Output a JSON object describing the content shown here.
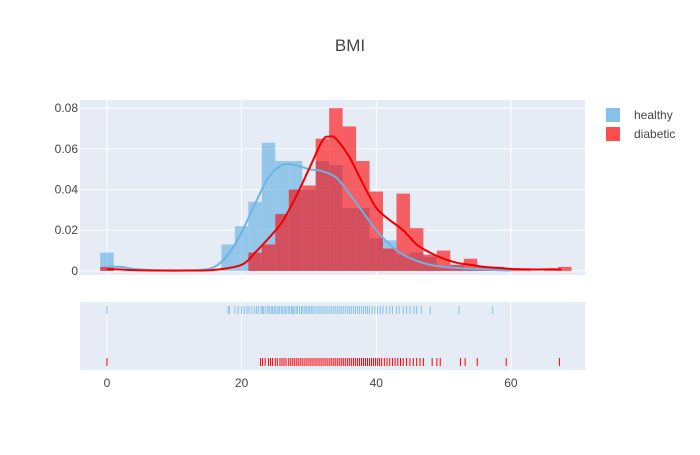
{
  "title": "BMI",
  "colors": {
    "healthy": "#5dade2",
    "diabetic": "#ff0000",
    "plot_bg": "#e5ecf6",
    "grid": "#ffffff",
    "text": "#444444",
    "title": "#444444"
  },
  "legend": {
    "placement": "top-right",
    "items": [
      {
        "name": "healthy",
        "color": "#85c1e9"
      },
      {
        "name": "diabetic",
        "color": "#ff4d4d"
      }
    ]
  },
  "chart_data": {
    "type": "histogram-with-density-and-rug",
    "title": "BMI",
    "bin_width": 2,
    "xlim": [
      -4,
      71
    ],
    "ylim": [
      -0.002,
      0.084
    ],
    "x_ticks": [
      0,
      20,
      40,
      60
    ],
    "x_tick_labels": [
      "0",
      "20",
      "40",
      "60"
    ],
    "y_ticks": [
      0,
      0.02,
      0.04,
      0.06,
      0.08
    ],
    "y_tick_labels": [
      "0",
      "0.02",
      "0.04",
      "0.06",
      "0.08"
    ],
    "grid": true,
    "series": [
      {
        "name": "healthy",
        "bins": [
          [
            -1,
            0.009
          ],
          [
            17,
            0.013
          ],
          [
            19,
            0.022
          ],
          [
            21,
            0.034
          ],
          [
            23,
            0.063
          ],
          [
            25,
            0.054
          ],
          [
            27,
            0.054
          ],
          [
            29,
            0.04
          ],
          [
            31,
            0.054
          ],
          [
            33,
            0.052
          ],
          [
            35,
            0.031
          ],
          [
            37,
            0.031
          ],
          [
            39,
            0.016
          ],
          [
            41,
            0.015
          ],
          [
            43,
            0.008
          ],
          [
            45,
            0.009
          ],
          [
            47,
            0.007
          ],
          [
            49,
            0.002
          ],
          [
            51,
            0.003
          ],
          [
            53,
            0.001
          ],
          [
            55,
            0.001
          ],
          [
            57,
            0.001
          ]
        ],
        "density": [
          [
            0,
            0.002
          ],
          [
            2,
            0.002
          ],
          [
            4,
            0.001
          ],
          [
            6,
            0.0005
          ],
          [
            8,
            0.0003
          ],
          [
            10,
            0.0003
          ],
          [
            12,
            0.0003
          ],
          [
            14,
            0.0005
          ],
          [
            16,
            0.002
          ],
          [
            18,
            0.008
          ],
          [
            20,
            0.019
          ],
          [
            22,
            0.033
          ],
          [
            24,
            0.046
          ],
          [
            26,
            0.052
          ],
          [
            28,
            0.052
          ],
          [
            30,
            0.05
          ],
          [
            32,
            0.049
          ],
          [
            34,
            0.046
          ],
          [
            36,
            0.038
          ],
          [
            38,
            0.029
          ],
          [
            40,
            0.02
          ],
          [
            42,
            0.013
          ],
          [
            44,
            0.008
          ],
          [
            46,
            0.005
          ],
          [
            48,
            0.003
          ],
          [
            50,
            0.002
          ],
          [
            52,
            0.0015
          ],
          [
            54,
            0.001
          ],
          [
            56,
            0.0008
          ],
          [
            58,
            0.0004
          ],
          [
            60,
            0.0002
          ]
        ],
        "rug": [
          0,
          18,
          18.2,
          19,
          19.5,
          20,
          20.4,
          20.8,
          21.1,
          21.5,
          21.9,
          22.2,
          22.5,
          22.9,
          23.1,
          23.3,
          23.6,
          23.9,
          24.1,
          24.4,
          24.6,
          24.9,
          25.1,
          25.4,
          25.6,
          25.9,
          26.1,
          26.4,
          26.6,
          26.9,
          27.1,
          27.4,
          27.6,
          27.8,
          28.1,
          28.3,
          28.6,
          28.9,
          29.1,
          29.4,
          29.6,
          29.9,
          30.1,
          30.4,
          30.6,
          30.9,
          31.2,
          31.5,
          31.8,
          32.1,
          32.4,
          32.7,
          33,
          33.3,
          33.6,
          33.9,
          34.2,
          34.5,
          34.8,
          35.1,
          35.4,
          35.7,
          36,
          36.3,
          36.6,
          36.9,
          37.2,
          37.5,
          37.8,
          38.1,
          38.4,
          38.7,
          39,
          39.4,
          39.8,
          40.2,
          40.6,
          41,
          41.5,
          42,
          42.4,
          43,
          43.4,
          44,
          44.5,
          45,
          45.6,
          46,
          46.7,
          48,
          52.3,
          57.3
        ]
      },
      {
        "name": "diabetic",
        "bins": [
          [
            -1,
            0.002
          ],
          [
            21,
            0.009
          ],
          [
            23,
            0.013
          ],
          [
            25,
            0.028
          ],
          [
            27,
            0.04
          ],
          [
            29,
            0.042
          ],
          [
            31,
            0.065
          ],
          [
            33,
            0.08
          ],
          [
            35,
            0.071
          ],
          [
            37,
            0.054
          ],
          [
            39,
            0.039
          ],
          [
            41,
            0.011
          ],
          [
            43,
            0.038
          ],
          [
            45,
            0.021
          ],
          [
            47,
            0.008
          ],
          [
            49,
            0.01
          ],
          [
            51,
            0.003
          ],
          [
            53,
            0.006
          ],
          [
            55,
            0.002
          ],
          [
            57,
            0.002
          ],
          [
            59,
            0.001
          ],
          [
            61,
            0.001
          ],
          [
            65,
            0.001
          ],
          [
            67,
            0.002
          ]
        ],
        "density": [
          [
            0,
            0.001
          ],
          [
            4,
            0.0004
          ],
          [
            8,
            0.0002
          ],
          [
            12,
            0.0002
          ],
          [
            16,
            0.0005
          ],
          [
            20,
            0.003
          ],
          [
            22,
            0.009
          ],
          [
            24,
            0.016
          ],
          [
            26,
            0.024
          ],
          [
            28,
            0.036
          ],
          [
            30,
            0.05
          ],
          [
            32,
            0.064
          ],
          [
            33,
            0.066
          ],
          [
            34,
            0.065
          ],
          [
            36,
            0.056
          ],
          [
            38,
            0.043
          ],
          [
            40,
            0.031
          ],
          [
            42,
            0.025
          ],
          [
            44,
            0.02
          ],
          [
            46,
            0.013
          ],
          [
            48,
            0.009
          ],
          [
            50,
            0.006
          ],
          [
            52,
            0.004
          ],
          [
            54,
            0.003
          ],
          [
            56,
            0.002
          ],
          [
            58,
            0.0015
          ],
          [
            60,
            0.001
          ],
          [
            62,
            0.0008
          ],
          [
            64,
            0.0007
          ],
          [
            66,
            0.0008
          ],
          [
            67.5,
            0.0007
          ]
        ],
        "rug": [
          0,
          22.8,
          23.1,
          23.5,
          24,
          24.3,
          24.6,
          25,
          25.3,
          25.7,
          26,
          26.3,
          26.6,
          27,
          27.3,
          27.6,
          27.9,
          28.2,
          28.5,
          28.8,
          29.1,
          29.4,
          29.7,
          30,
          30.3,
          30.6,
          30.9,
          31.2,
          31.5,
          31.8,
          32.1,
          32.4,
          32.7,
          33,
          33.3,
          33.6,
          33.9,
          34.2,
          34.5,
          34.8,
          35.1,
          35.4,
          35.7,
          36,
          36.3,
          36.6,
          36.9,
          37.2,
          37.5,
          37.8,
          38.1,
          38.4,
          38.7,
          39,
          39.3,
          39.6,
          39.9,
          40.2,
          40.5,
          40.8,
          41.2,
          41.6,
          42,
          42.4,
          42.8,
          43.2,
          43.6,
          44,
          44.5,
          45,
          45.5,
          46,
          46.5,
          47,
          48.3,
          49,
          49.5,
          52.5,
          53.2,
          55,
          59.3,
          67.2
        ]
      }
    ]
  }
}
